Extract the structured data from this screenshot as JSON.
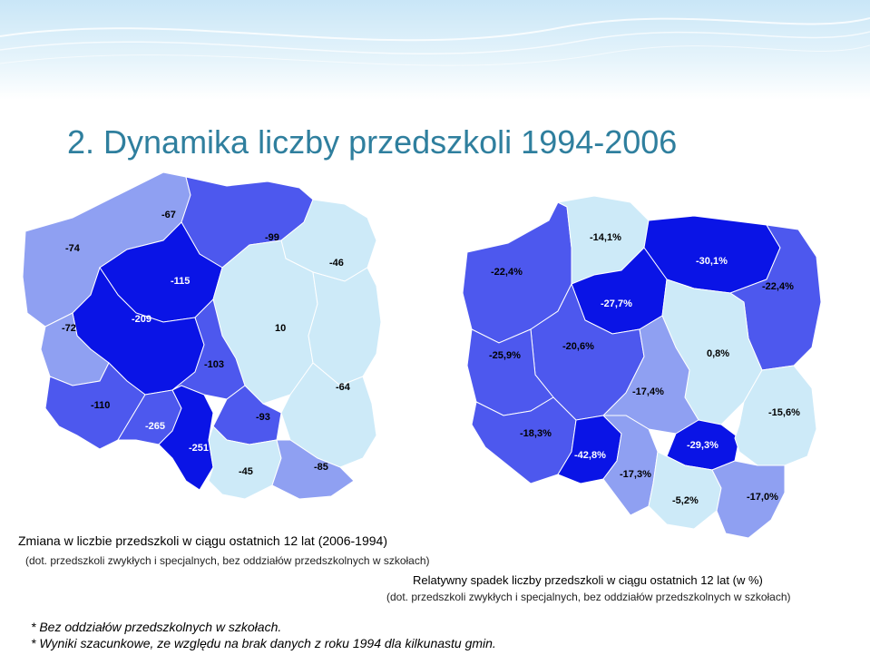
{
  "slide": {
    "title": "2. Dynamika liczby przedszkoli 1994-2006"
  },
  "colors": {
    "light": "#cdeaf8",
    "medium_light": "#8fa0f2",
    "medium": "#4d58ee",
    "dark": "#0a14e6",
    "label_dark": "#000000",
    "label_light": "#ffffff",
    "title": "#2f7f9e"
  },
  "map_absolute": {
    "caption": "Zmiana w liczbie przedszkoli w ciągu ostatnich 12 lat  (2006-1994)",
    "subcaption": "(dot. przedszkoli zwykłych i specjalnych, bez oddziałów przedszkolnych w szkołach)",
    "labels": [
      "-67",
      "-74",
      "-99",
      "-46",
      "-115",
      "-72",
      "-209",
      "10",
      "-103",
      "-64",
      "-110",
      "-93",
      "-265",
      "-251",
      "-45",
      "-85"
    ]
  },
  "map_relative": {
    "caption": "Relatywny spadek liczby przedszkoli w ciągu ostatnich 12 lat (w %)",
    "subcaption": "(dot. przedszkoli zwykłych i specjalnych, bez oddziałów przedszkolnych w szkołach)",
    "labels": [
      "-14,1%",
      "-22,4%",
      "-30,1%",
      "-22,4%",
      "-27,7%",
      "-25,9%",
      "-20,6%",
      "0,8%",
      "-17,4%",
      "-15,6%",
      "-18,3%",
      "-42,8%",
      "-29,3%",
      "-17,3%",
      "-5,2%",
      "-17,0%"
    ]
  },
  "footnotes": [
    "* Bez oddziałów przedszkolnych w szkołach.",
    "* Wyniki szacunkowe, ze względu na brak danych z roku 1994 dla kilkunastu gmin."
  ]
}
